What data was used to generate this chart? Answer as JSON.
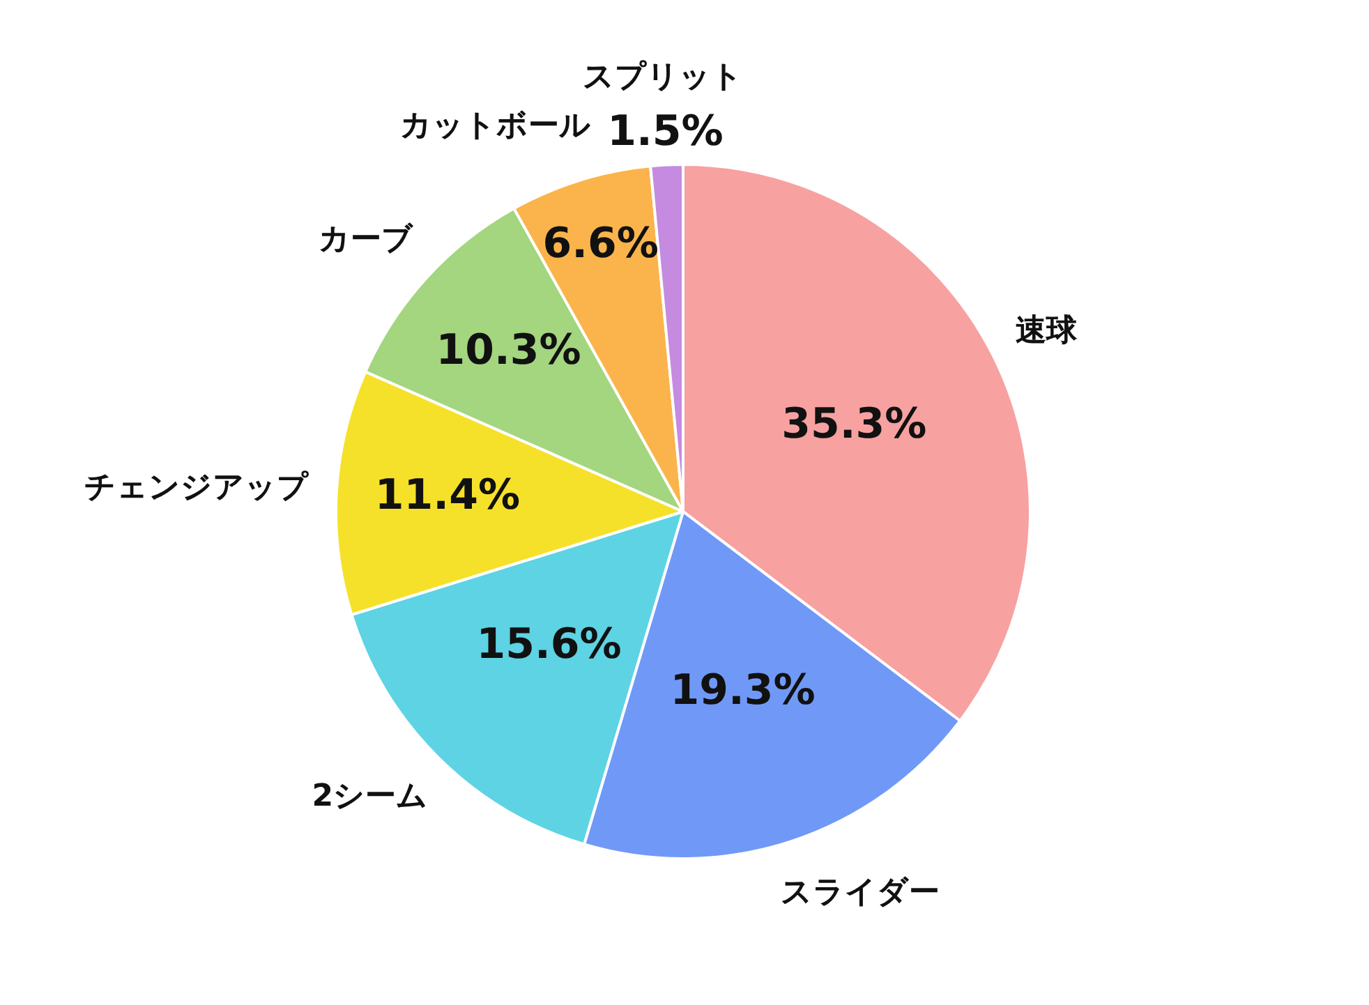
{
  "chart_data": {
    "type": "pie",
    "categories": [
      "速球",
      "スライダー",
      "2シーム",
      "チェンジアップ",
      "カーブ",
      "カットボール",
      "スプリット"
    ],
    "values": [
      35.3,
      19.3,
      15.6,
      11.4,
      10.3,
      6.6,
      1.5
    ],
    "value_labels": [
      "35.3%",
      "19.3%",
      "15.6%",
      "11.4%",
      "10.3%",
      "6.6%",
      "1.5%"
    ],
    "colors": [
      "#f7a1a1",
      "#7099f7",
      "#5ed3e4",
      "#f5e12a",
      "#a3d67f",
      "#fbb44b",
      "#c58be0"
    ],
    "legend": false
  }
}
